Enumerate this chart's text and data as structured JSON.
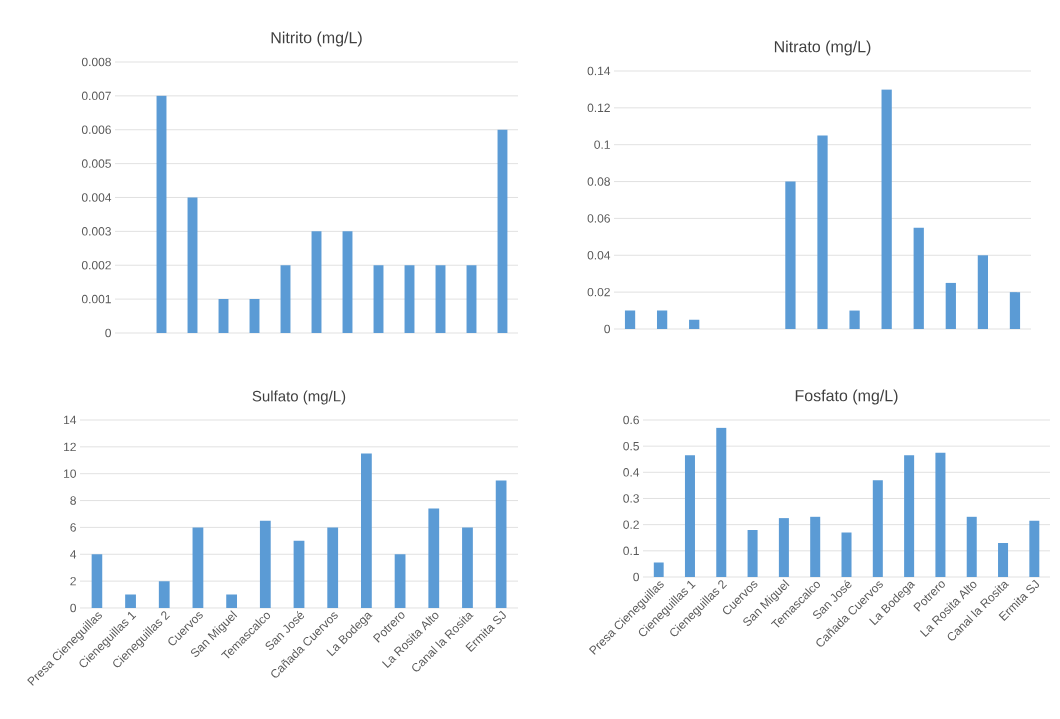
{
  "chart_data": [
    {
      "type": "bar",
      "title": "Nitrito (mg/L)",
      "categories": [
        null,
        null,
        null,
        null,
        null,
        null,
        null,
        null,
        null,
        null,
        null,
        null,
        null
      ],
      "values": [
        null,
        0.007,
        0.004,
        0.001,
        0.001,
        0.002,
        0.003,
        0.003,
        0.002,
        0.002,
        0.002,
        0.002,
        0.006
      ],
      "color": "#5b9bd5",
      "ylim": [
        0,
        0.008
      ],
      "yticks": [
        0,
        0.001,
        0.002,
        0.003,
        0.004,
        0.005,
        0.006,
        0.007,
        0.008
      ],
      "grid": "y",
      "tick_labels": "y"
    },
    {
      "type": "bar",
      "title": "Nitrato (mg/L)",
      "categories": [
        null,
        null,
        null,
        null,
        null,
        null,
        null,
        null,
        null,
        null,
        null,
        null,
        null
      ],
      "values": [
        0.01,
        0.01,
        0.005,
        0,
        0,
        0.08,
        0.105,
        0.01,
        0.13,
        0.055,
        0.025,
        0.04,
        0.02
      ],
      "color": "#5b9bd5",
      "ylim": [
        0,
        0.14
      ],
      "yticks": [
        0,
        0.02,
        0.04,
        0.06,
        0.08,
        0.1,
        0.12,
        0.14
      ],
      "grid": "y",
      "tick_labels": "y"
    },
    {
      "type": "bar",
      "title": "Sulfato (mg/L)",
      "categories": [
        "Presa Cieneguillas",
        "Cieneguillas 1",
        "Cieneguillas 2",
        "Cuervos",
        "San Miguel",
        "Temascalco",
        "San José",
        "Cañada Cuervos",
        "La Bodega",
        "Potrero",
        "La Rosita Alto",
        "Canal la Rosita",
        "Ermita SJ"
      ],
      "values": [
        4,
        1,
        2,
        6,
        1,
        6.5,
        5,
        6,
        11.5,
        4,
        7.4,
        6,
        9.5
      ],
      "color": "#5b9bd5",
      "ylim": [
        0,
        14
      ],
      "yticks": [
        0,
        2,
        4,
        6,
        8,
        10,
        12,
        14
      ],
      "grid": "y"
    },
    {
      "type": "bar",
      "title": "Fosfato (mg/L)",
      "categories": [
        "Presa Cieneguillas",
        "Cieneguillas 1",
        "Cieneguillas 2",
        "Cuervos",
        "San Miguel",
        "Temascalco",
        "San José",
        "Cañada Cuervos",
        "La Bodega",
        "Potrero",
        "La Rosita Alto",
        "Canal la Rosita",
        "Ermita SJ"
      ],
      "values": [
        0.055,
        0.465,
        0.57,
        0.18,
        0.225,
        0.23,
        0.17,
        0.37,
        0.465,
        0.475,
        0.23,
        0.13,
        0.215
      ],
      "color": "#5b9bd5",
      "ylim": [
        0,
        0.6
      ],
      "yticks": [
        0,
        0.1,
        0.2,
        0.3,
        0.4,
        0.5,
        0.6
      ],
      "grid": "y"
    }
  ]
}
